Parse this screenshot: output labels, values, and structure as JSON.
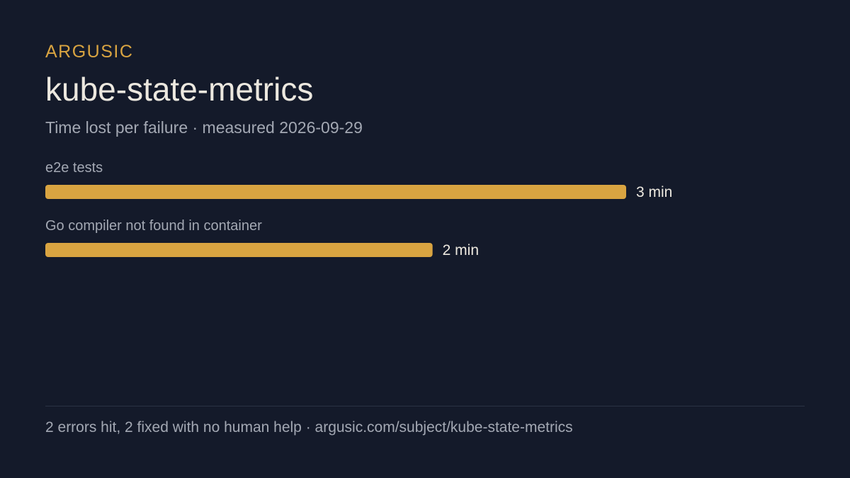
{
  "brand": "ARGUSIC",
  "title": "kube-state-metrics",
  "subtitle": "Time lost per failure · measured 2026-09-29",
  "footer": "2 errors hit, 2 fixed with no human help · argusic.com/subject/kube-state-metrics",
  "colors": {
    "background": "#141a2a",
    "brand": "#d9a441",
    "title": "#ece8df",
    "muted": "#a3a8b3",
    "bar": "#d9a441",
    "value_label": "#ece8df",
    "divider": "#2b3244"
  },
  "chart_data": {
    "type": "bar",
    "orientation": "horizontal",
    "categories": [
      "e2e tests",
      "Go compiler not found in container"
    ],
    "values": [
      3,
      2
    ],
    "unit": "min",
    "value_labels": [
      "3 min",
      "2 min"
    ],
    "xlim": [
      0,
      3
    ],
    "grid": false
  }
}
